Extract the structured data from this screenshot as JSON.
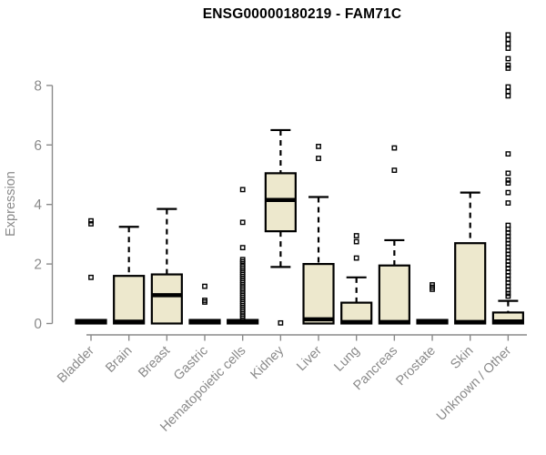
{
  "title": "ENSG00000180219 - FAM71C",
  "style": {
    "box_fill": "#EDE8CD",
    "box_stroke": "#000000",
    "axis_color": "#8a8a8a",
    "title_color": "#000000",
    "background": "#ffffff"
  },
  "chart_data": {
    "type": "boxplot",
    "title": "ENSG00000180219 - FAM71C",
    "xlabel": "",
    "ylabel": "Expression",
    "ylim": [
      0,
      9.8
    ],
    "yticks": [
      0,
      2,
      4,
      6,
      8
    ],
    "grid": false,
    "legend": "none",
    "categories": [
      "Bladder",
      "Brain",
      "Breast",
      "Gastric",
      "Hematopoietic cells",
      "Kidney",
      "Liver",
      "Lung",
      "Pancreas",
      "Prostate",
      "Skin",
      "Unknown / Other"
    ],
    "series": [
      {
        "name": "Bladder",
        "whisker_low": 0,
        "q1": 0,
        "median": 0.06,
        "q3": 0.12,
        "whisker_high": 0.12,
        "outliers": [
          3.45,
          3.35,
          1.55
        ]
      },
      {
        "name": "Brain",
        "whisker_low": 0,
        "q1": 0,
        "median": 0.06,
        "q3": 1.6,
        "whisker_high": 3.25,
        "outliers": []
      },
      {
        "name": "Breast",
        "whisker_low": 0,
        "q1": 0,
        "median": 0.95,
        "q3": 1.65,
        "whisker_high": 3.85,
        "outliers": []
      },
      {
        "name": "Gastric",
        "whisker_low": 0,
        "q1": 0,
        "median": 0.06,
        "q3": 0.12,
        "whisker_high": 0.12,
        "outliers": [
          1.25,
          0.78,
          0.72
        ]
      },
      {
        "name": "Hematopoietic cells",
        "whisker_low": 0,
        "q1": 0,
        "median": 0.06,
        "q3": 0.12,
        "whisker_high": 0.12,
        "outliers": [
          4.5,
          3.4,
          2.55,
          2.15,
          2.08,
          2.0,
          1.93,
          1.86,
          1.79,
          1.72,
          1.65,
          1.58,
          1.51,
          1.44,
          1.37,
          1.3,
          1.23,
          1.16,
          1.09,
          1.02,
          0.95,
          0.88,
          0.81,
          0.74,
          0.67,
          0.6,
          0.53,
          0.46,
          0.39,
          0.32,
          0.25,
          0.18
        ]
      },
      {
        "name": "Kidney",
        "whisker_low": 1.9,
        "q1": 3.1,
        "median": 4.15,
        "q3": 5.05,
        "whisker_high": 6.5,
        "outliers": [
          0.02
        ]
      },
      {
        "name": "Liver",
        "whisker_low": 0,
        "q1": 0,
        "median": 0.14,
        "q3": 2.0,
        "whisker_high": 4.25,
        "outliers": [
          5.95,
          5.55
        ]
      },
      {
        "name": "Lung",
        "whisker_low": 0,
        "q1": 0,
        "median": 0.05,
        "q3": 0.7,
        "whisker_high": 1.55,
        "outliers": [
          2.95,
          2.75,
          2.2
        ]
      },
      {
        "name": "Pancreas",
        "whisker_low": 0,
        "q1": 0,
        "median": 0.05,
        "q3": 1.95,
        "whisker_high": 2.8,
        "outliers": [
          5.9,
          5.15
        ]
      },
      {
        "name": "Prostate",
        "whisker_low": 0,
        "q1": 0,
        "median": 0.06,
        "q3": 0.12,
        "whisker_high": 0.12,
        "outliers": [
          1.3,
          1.22,
          1.15
        ]
      },
      {
        "name": "Skin",
        "whisker_low": 0,
        "q1": 0,
        "median": 0.05,
        "q3": 2.7,
        "whisker_high": 4.4,
        "outliers": []
      },
      {
        "name": "Unknown / Other",
        "whisker_low": 0,
        "q1": 0,
        "median": 0.07,
        "q3": 0.37,
        "whisker_high": 0.76,
        "outliers": [
          9.7,
          9.55,
          9.4,
          9.25,
          8.9,
          8.68,
          8.58,
          7.95,
          7.8,
          7.65,
          5.7,
          5.05,
          4.82,
          4.72,
          4.4,
          4.05,
          3.3,
          3.17,
          3.05,
          2.93,
          2.81,
          2.69,
          2.57,
          2.45,
          2.33,
          2.21,
          2.09,
          1.97,
          1.85,
          1.73,
          1.61,
          1.49,
          1.37,
          1.25,
          1.13,
          1.01,
          0.92
        ]
      }
    ]
  }
}
